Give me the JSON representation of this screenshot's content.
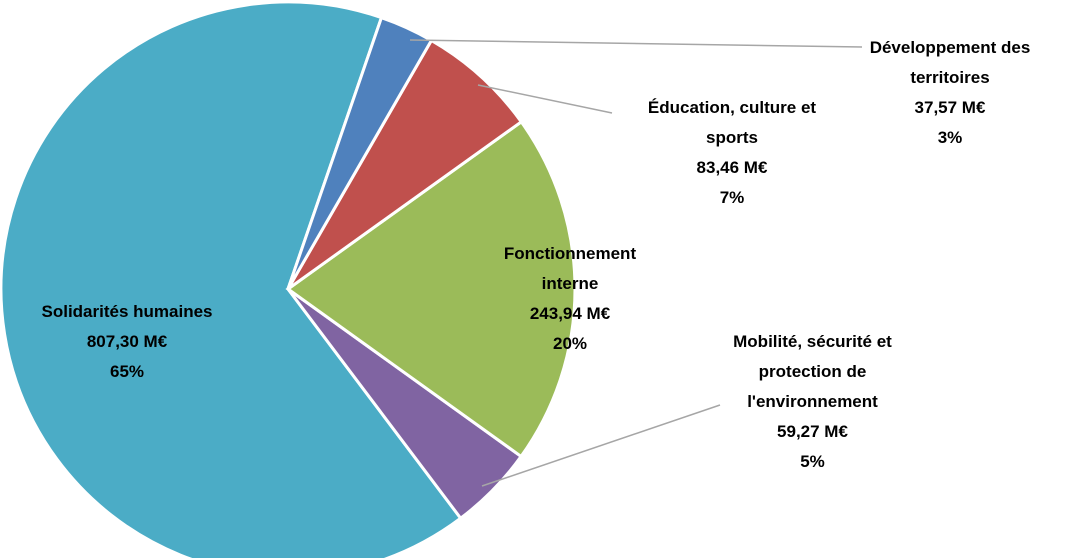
{
  "chart_data": {
    "type": "pie",
    "categories": [
      "Développement des territoires",
      "Éducation, culture et sports",
      "Fonctionnement interne",
      "Mobilité, sécurité et protection de l'environnement",
      "Solidarités humaines"
    ],
    "values": [
      37.57,
      83.46,
      243.94,
      59.27,
      807.3
    ],
    "value_labels": [
      "37,57 M€",
      "83,46 M€",
      "243,94 M€",
      "59,27 M€",
      "807,30 M€"
    ],
    "shares": [
      3,
      7,
      20,
      5,
      65
    ],
    "share_labels": [
      "3%",
      "7%",
      "20%",
      "5%",
      "65%"
    ],
    "colors": [
      "#4f81bd",
      "#c0504d",
      "#9bbb59",
      "#8064a2",
      "#4bacc6"
    ]
  }
}
